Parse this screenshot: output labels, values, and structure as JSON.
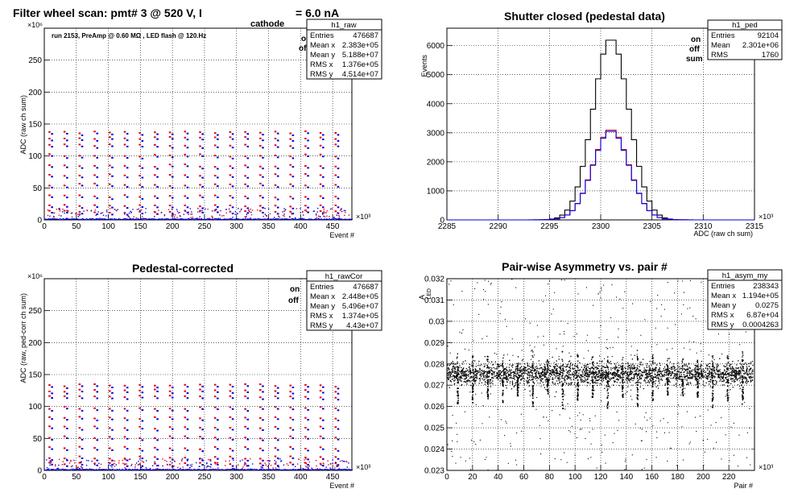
{
  "colors": {
    "on": "#e8000b",
    "off": "#0000e0",
    "sum": "#000000",
    "frame": "#000000"
  },
  "chart_data": [
    {
      "id": "raw",
      "type": "scatter",
      "title": "Filter wheel scan: pmt#   3 @   520 V, I",
      "title_sub": "cathode",
      "title_tail": "= 6.0 nA",
      "annotation": "run 2153, PreAmp @ 0.60 MΩ , LED flash @  120.Hz",
      "xlabel": "Event #",
      "ylabel": "ADC (raw ch sum)",
      "x_exponent": "×10³",
      "y_exponent": "×10⁶",
      "xlim": [
        0,
        480
      ],
      "ylim": [
        0,
        300
      ],
      "xticks": [
        "0",
        "50",
        "100",
        "150",
        "200",
        "250",
        "300",
        "350",
        "400",
        "450"
      ],
      "yticks": [
        "0",
        "50",
        "100",
        "150",
        "200",
        "250"
      ],
      "legend": [
        "on",
        "off"
      ],
      "stats_title": "h1_raw",
      "stats": [
        [
          "Entries",
          "476687"
        ],
        [
          "Mean x",
          "2.383e+05"
        ],
        [
          "Mean y",
          "5.188e+07"
        ],
        [
          "RMS x",
          "1.376e+05"
        ],
        [
          "RMS y",
          "4.514e+07"
        ]
      ],
      "plateaus": [
        137,
        128,
        117,
        101,
        85,
        70,
        55,
        37,
        22,
        13
      ],
      "period": 23.5
    },
    {
      "id": "ped",
      "type": "line",
      "title": "Shutter closed (pedestal data)",
      "xlabel": "ADC (raw ch sum)",
      "ylabel": "Events",
      "x_exponent": "×10³",
      "xlim": [
        2285,
        2315
      ],
      "ylim": [
        0,
        6600
      ],
      "xticks": [
        "2285",
        "2290",
        "2295",
        "2300",
        "2305",
        "2310",
        "2315"
      ],
      "yticks": [
        "0",
        "1000",
        "2000",
        "3000",
        "4000",
        "5000",
        "6000"
      ],
      "legend": [
        "on",
        "off",
        "sum"
      ],
      "stats_title": "h1_ped",
      "stats": [
        [
          "Entries",
          "92104"
        ],
        [
          "Mean",
          "2.301e+06"
        ],
        [
          "RMS",
          "1760"
        ]
      ],
      "series": [
        {
          "name": "sum",
          "mean": 2301.0,
          "sigma": 1.76,
          "peak": 6250
        },
        {
          "name": "on",
          "mean": 2301.0,
          "sigma": 1.76,
          "peak": 3120
        },
        {
          "name": "off",
          "mean": 2301.0,
          "sigma": 1.76,
          "peak": 3080
        }
      ]
    },
    {
      "id": "rawCor",
      "type": "scatter",
      "title": "Pedestal-corrected",
      "xlabel": "Event #",
      "ylabel": "ADC (raw, ped-corr ch sum)",
      "x_exponent": "×10³",
      "y_exponent": "×10⁶",
      "xlim": [
        0,
        480
      ],
      "ylim": [
        0,
        300
      ],
      "xticks": [
        "0",
        "50",
        "100",
        "150",
        "200",
        "250",
        "300",
        "350",
        "400",
        "450"
      ],
      "yticks": [
        "0",
        "50",
        "100",
        "150",
        "200",
        "250"
      ],
      "legend": [
        "on",
        "off"
      ],
      "stats_title": "h1_rawCor",
      "stats": [
        [
          "Entries",
          "476687"
        ],
        [
          "Mean x",
          "2.448e+05"
        ],
        [
          "Mean y",
          "5.496e+07"
        ],
        [
          "RMS x",
          "1.374e+05"
        ],
        [
          "RMS y",
          "4.43e+07"
        ]
      ],
      "plateaus": [
        133,
        125,
        115,
        98,
        82,
        67,
        52,
        35,
        20,
        11
      ],
      "period": 23.5
    },
    {
      "id": "asym",
      "type": "scatter",
      "title": "Pair-wise Asymmetry vs. pair #",
      "xlabel": "Pair #",
      "ylabel": "A",
      "ylabel_sub": "LED",
      "x_exponent": "×10³",
      "xlim": [
        0,
        240
      ],
      "ylim": [
        0.023,
        0.032
      ],
      "xticks": [
        "0",
        "20",
        "40",
        "60",
        "80",
        "100",
        "120",
        "140",
        "160",
        "180",
        "200",
        "220"
      ],
      "yticks": [
        "0.023",
        "0.024",
        "0.025",
        "0.026",
        "0.027",
        "0.028",
        "0.029",
        "0.03",
        "0.031",
        "0.032"
      ],
      "stats_title": "h1_asym_my",
      "stats": [
        [
          "Entries",
          "238343"
        ],
        [
          "Mean x",
          "1.194e+05"
        ],
        [
          "Mean y",
          "0.0275"
        ],
        [
          "RMS x",
          "6.87e+04"
        ],
        [
          "RMS y",
          "0.0004263"
        ]
      ],
      "band_center": 0.02755,
      "band_halfwidth": 0.00045,
      "dip_period": 11.7
    }
  ]
}
